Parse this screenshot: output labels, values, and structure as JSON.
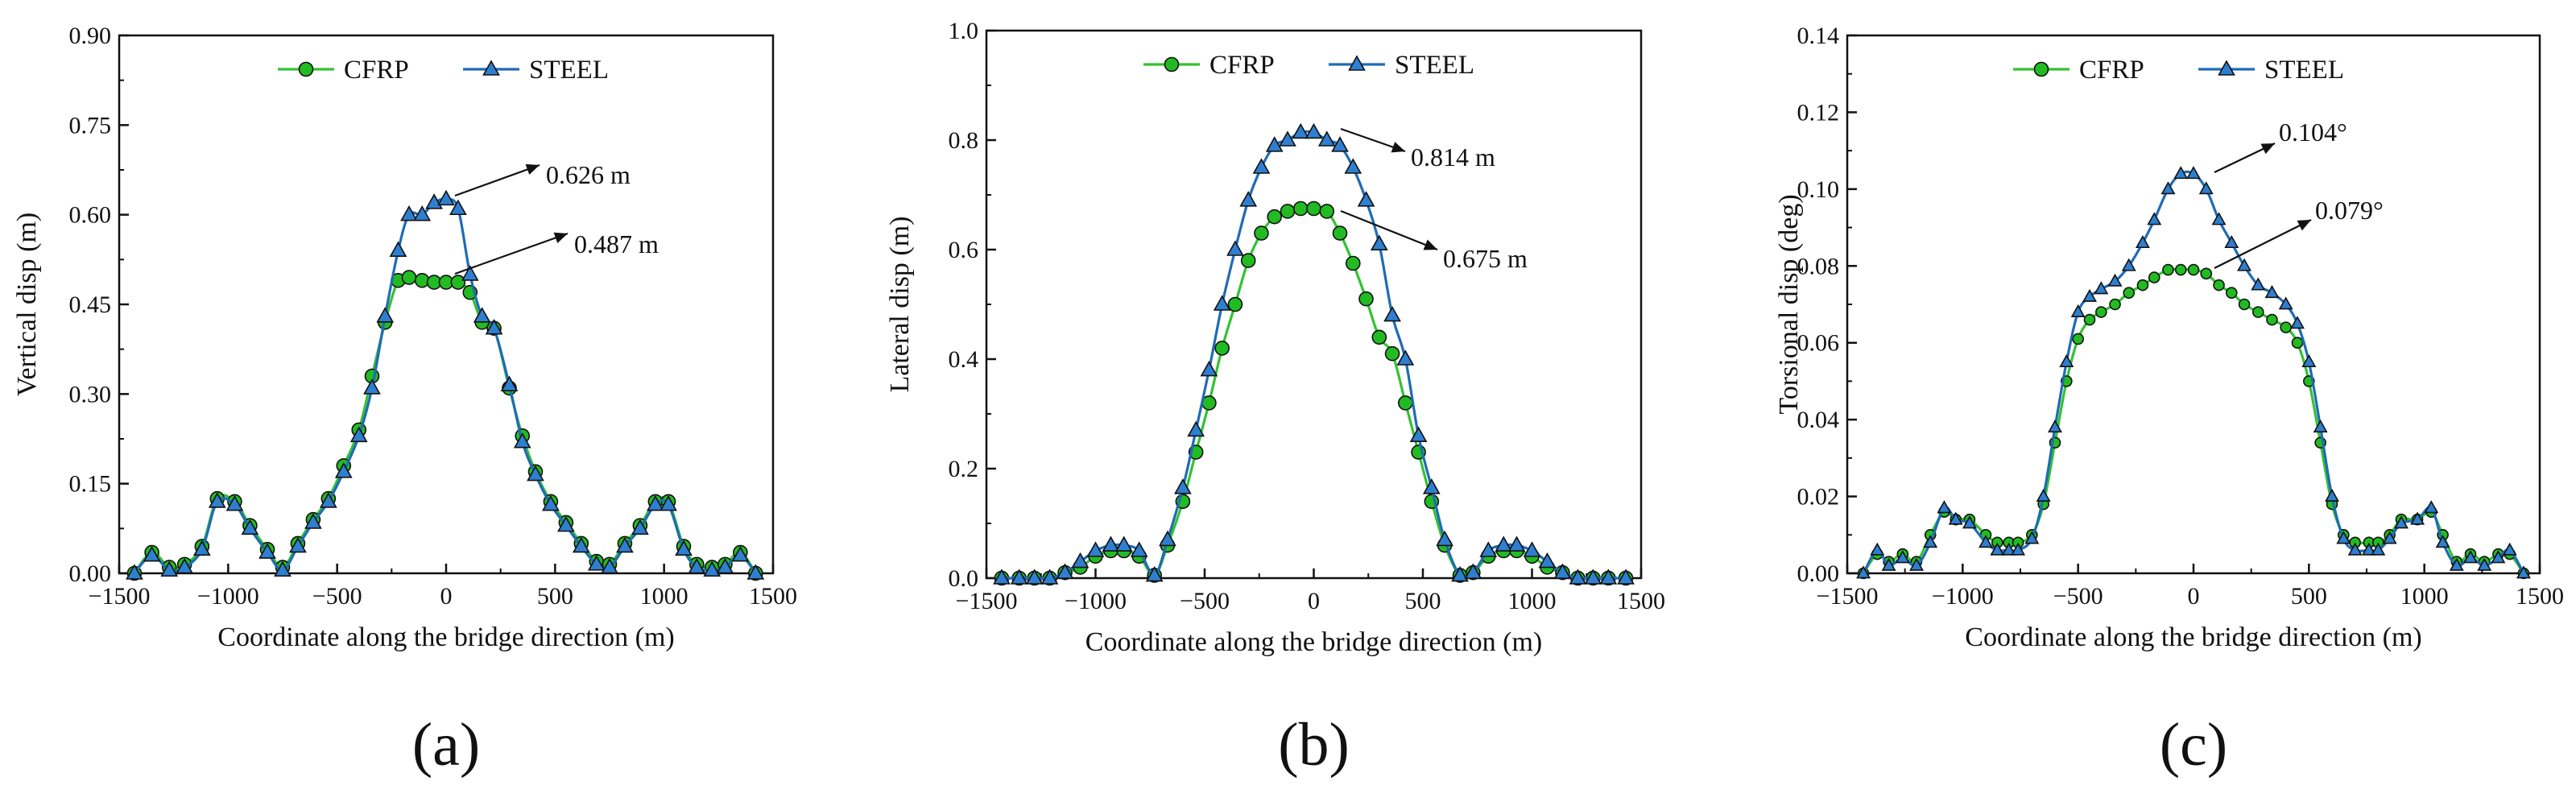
{
  "colors": {
    "cfrp": "#33c233",
    "cfrp_fill": "#22bb22",
    "steel": "#1f6bb5",
    "steel_fill": "#2f7fd0"
  },
  "chart_data": [
    {
      "type": "line",
      "panel_label": "(a)",
      "xlabel": "Coordinate along the bridge direction (m)",
      "ylabel": "Vertical disp (m)",
      "xlim": [
        -1500,
        1500
      ],
      "ylim": [
        0,
        0.9
      ],
      "xticks": [
        -1500,
        -1000,
        -500,
        0,
        500,
        1000,
        1500
      ],
      "xtick_labels": [
        "−1500",
        "−1000",
        "−500",
        "0",
        "500",
        "1000",
        "1500"
      ],
      "yticks": [
        0,
        0.15,
        0.3,
        0.45,
        0.6,
        0.75,
        0.9
      ],
      "ytick_labels": [
        "0.00",
        "0.15",
        "0.30",
        "0.45",
        "0.60",
        "0.75",
        "0.90"
      ],
      "legend": "top-center",
      "series": [
        {
          "name": "CFRP",
          "marker": "circle",
          "x": [
            -1430,
            -1350,
            -1270,
            -1200,
            -1120,
            -1050,
            -970,
            -900,
            -820,
            -750,
            -680,
            -610,
            -540,
            -470,
            -400,
            -340,
            -280,
            -220,
            -170,
            -110,
            -55,
            0,
            55,
            110,
            165,
            220,
            290,
            350,
            410,
            480,
            550,
            620,
            690,
            750,
            820,
            890,
            960,
            1020,
            1090,
            1150,
            1220,
            1280,
            1350,
            1420
          ],
          "y": [
            0.0,
            0.035,
            0.01,
            0.015,
            0.045,
            0.125,
            0.12,
            0.08,
            0.04,
            0.01,
            0.05,
            0.09,
            0.125,
            0.18,
            0.24,
            0.33,
            0.42,
            0.49,
            0.495,
            0.49,
            0.487,
            0.487,
            0.487,
            0.47,
            0.42,
            0.41,
            0.31,
            0.23,
            0.17,
            0.12,
            0.085,
            0.05,
            0.02,
            0.015,
            0.05,
            0.08,
            0.12,
            0.12,
            0.045,
            0.015,
            0.01,
            0.015,
            0.035,
            0.0
          ]
        },
        {
          "name": "STEEL",
          "marker": "triangle",
          "x": [
            -1430,
            -1350,
            -1270,
            -1200,
            -1120,
            -1050,
            -970,
            -900,
            -820,
            -750,
            -680,
            -610,
            -540,
            -470,
            -400,
            -340,
            -280,
            -220,
            -170,
            -110,
            -55,
            0,
            55,
            110,
            165,
            220,
            290,
            350,
            410,
            480,
            550,
            620,
            690,
            750,
            820,
            890,
            960,
            1020,
            1090,
            1150,
            1220,
            1280,
            1350,
            1420
          ],
          "y": [
            0.0,
            0.03,
            0.005,
            0.01,
            0.04,
            0.12,
            0.115,
            0.075,
            0.035,
            0.005,
            0.045,
            0.085,
            0.12,
            0.17,
            0.23,
            0.31,
            0.43,
            0.54,
            0.6,
            0.6,
            0.62,
            0.626,
            0.61,
            0.5,
            0.43,
            0.41,
            0.315,
            0.22,
            0.165,
            0.115,
            0.08,
            0.045,
            0.015,
            0.01,
            0.045,
            0.075,
            0.115,
            0.115,
            0.04,
            0.01,
            0.005,
            0.01,
            0.03,
            0.0
          ]
        }
      ],
      "annotations": [
        {
          "text": "0.626 m",
          "x": 20,
          "y": 0.626
        },
        {
          "text": "0.487 m",
          "x": 50,
          "y": 0.487
        }
      ]
    },
    {
      "type": "line",
      "panel_label": "(b)",
      "xlabel": "Coordinate along the bridge direction (m)",
      "ylabel": "Lateral disp (m)",
      "xlim": [
        -1500,
        1500
      ],
      "ylim": [
        0,
        1.0
      ],
      "xticks": [
        -1500,
        -1000,
        -500,
        0,
        500,
        1000,
        1500
      ],
      "xtick_labels": [
        "−1500",
        "−1000",
        "−500",
        "0",
        "500",
        "1000",
        "1500"
      ],
      "yticks": [
        0,
        0.2,
        0.4,
        0.6,
        0.8,
        1.0
      ],
      "ytick_labels": [
        "0.0",
        "0.2",
        "0.4",
        "0.6",
        "0.8",
        "1.0"
      ],
      "legend": "top-center",
      "series": [
        {
          "name": "CFRP",
          "marker": "circle",
          "x": [
            -1430,
            -1350,
            -1280,
            -1210,
            -1140,
            -1070,
            -1000,
            -930,
            -870,
            -800,
            -730,
            -670,
            -600,
            -540,
            -480,
            -420,
            -360,
            -300,
            -240,
            -180,
            -120,
            -60,
            0,
            60,
            120,
            180,
            240,
            300,
            360,
            420,
            480,
            540,
            600,
            670,
            730,
            800,
            870,
            930,
            1000,
            1070,
            1140,
            1210,
            1280,
            1350,
            1430
          ],
          "y": [
            0,
            0,
            0,
            0,
            0.01,
            0.02,
            0.04,
            0.05,
            0.05,
            0.04,
            0.005,
            0.06,
            0.14,
            0.23,
            0.32,
            0.42,
            0.5,
            0.58,
            0.63,
            0.66,
            0.67,
            0.675,
            0.675,
            0.67,
            0.63,
            0.575,
            0.51,
            0.44,
            0.41,
            0.32,
            0.23,
            0.14,
            0.06,
            0.005,
            0.01,
            0.04,
            0.05,
            0.05,
            0.04,
            0.02,
            0.01,
            0,
            0,
            0,
            0
          ]
        },
        {
          "name": "STEEL",
          "marker": "triangle",
          "x": [
            -1430,
            -1350,
            -1280,
            -1210,
            -1140,
            -1070,
            -1000,
            -930,
            -870,
            -800,
            -730,
            -670,
            -600,
            -540,
            -480,
            -420,
            -360,
            -300,
            -240,
            -180,
            -120,
            -60,
            0,
            60,
            120,
            180,
            240,
            300,
            360,
            420,
            480,
            540,
            600,
            670,
            730,
            800,
            870,
            930,
            1000,
            1070,
            1140,
            1210,
            1280,
            1350,
            1430
          ],
          "y": [
            0,
            0,
            0,
            0,
            0.01,
            0.03,
            0.05,
            0.06,
            0.06,
            0.05,
            0.005,
            0.07,
            0.165,
            0.27,
            0.38,
            0.5,
            0.6,
            0.69,
            0.75,
            0.79,
            0.8,
            0.814,
            0.814,
            0.8,
            0.79,
            0.75,
            0.69,
            0.61,
            0.48,
            0.4,
            0.26,
            0.165,
            0.07,
            0.005,
            0.01,
            0.05,
            0.06,
            0.06,
            0.05,
            0.03,
            0.01,
            0,
            0,
            0,
            0
          ]
        }
      ],
      "annotations": [
        {
          "text": "0.814 m",
          "x": 20,
          "y": 0.814
        },
        {
          "text": "0.675 m",
          "x": 60,
          "y": 0.675
        }
      ]
    },
    {
      "type": "line",
      "panel_label": "(c)",
      "xlabel": "Coordinate along the bridge direction (m)",
      "ylabel": "Torsional disp (deg)",
      "xlim": [
        -1500,
        1500
      ],
      "ylim": [
        0,
        0.14
      ],
      "xticks": [
        -1500,
        -1000,
        -500,
        0,
        500,
        1000,
        1500
      ],
      "xtick_labels": [
        "−1500",
        "−1000",
        "−500",
        "0",
        "500",
        "1000",
        "1500"
      ],
      "yticks": [
        0,
        0.02,
        0.04,
        0.06,
        0.08,
        0.1,
        0.12,
        0.14
      ],
      "ytick_labels": [
        "0.00",
        "0.02",
        "0.04",
        "0.06",
        "0.08",
        "0.10",
        "0.12",
        "0.14"
      ],
      "legend": "top-center",
      "series": [
        {
          "name": "CFRP",
          "marker": "circle",
          "x": [
            -1430,
            -1370,
            -1320,
            -1260,
            -1200,
            -1140,
            -1080,
            -1030,
            -970,
            -900,
            -850,
            -800,
            -760,
            -700,
            -650,
            -600,
            -550,
            -500,
            -450,
            -400,
            -340,
            -280,
            -220,
            -170,
            -110,
            -55,
            0,
            55,
            110,
            165,
            220,
            280,
            340,
            400,
            450,
            500,
            550,
            600,
            650,
            700,
            760,
            800,
            850,
            900,
            970,
            1030,
            1080,
            1140,
            1200,
            1260,
            1320,
            1370,
            1430
          ],
          "y": [
            0,
            0.005,
            0.003,
            0.005,
            0.003,
            0.01,
            0.016,
            0.014,
            0.014,
            0.01,
            0.008,
            0.008,
            0.008,
            0.01,
            0.018,
            0.034,
            0.05,
            0.061,
            0.066,
            0.068,
            0.07,
            0.073,
            0.075,
            0.077,
            0.079,
            0.079,
            0.079,
            0.078,
            0.075,
            0.073,
            0.07,
            0.068,
            0.066,
            0.064,
            0.06,
            0.05,
            0.034,
            0.018,
            0.01,
            0.008,
            0.008,
            0.008,
            0.01,
            0.014,
            0.014,
            0.016,
            0.01,
            0.003,
            0.005,
            0.003,
            0.005,
            0.005,
            0
          ]
        },
        {
          "name": "STEEL",
          "marker": "triangle",
          "x": [
            -1430,
            -1370,
            -1320,
            -1260,
            -1200,
            -1140,
            -1080,
            -1030,
            -970,
            -900,
            -850,
            -800,
            -760,
            -700,
            -650,
            -600,
            -550,
            -500,
            -450,
            -400,
            -340,
            -280,
            -220,
            -170,
            -110,
            -55,
            0,
            55,
            110,
            165,
            220,
            280,
            340,
            400,
            450,
            500,
            550,
            600,
            650,
            700,
            760,
            800,
            850,
            900,
            970,
            1030,
            1080,
            1140,
            1200,
            1260,
            1320,
            1370,
            1430
          ],
          "y": [
            0,
            0.006,
            0.002,
            0.004,
            0.002,
            0.008,
            0.017,
            0.014,
            0.013,
            0.008,
            0.006,
            0.006,
            0.006,
            0.009,
            0.02,
            0.038,
            0.055,
            0.068,
            0.072,
            0.074,
            0.076,
            0.08,
            0.086,
            0.092,
            0.1,
            0.104,
            0.104,
            0.1,
            0.092,
            0.086,
            0.08,
            0.075,
            0.073,
            0.07,
            0.065,
            0.055,
            0.038,
            0.02,
            0.009,
            0.006,
            0.006,
            0.006,
            0.009,
            0.013,
            0.014,
            0.017,
            0.008,
            0.002,
            0.004,
            0.002,
            0.004,
            0.006,
            0
          ]
        }
      ],
      "annotations": [
        {
          "text": "0.104°",
          "x": 0,
          "y": 0.104
        },
        {
          "text": "0.079°",
          "x": 0,
          "y": 0.079
        }
      ]
    }
  ]
}
